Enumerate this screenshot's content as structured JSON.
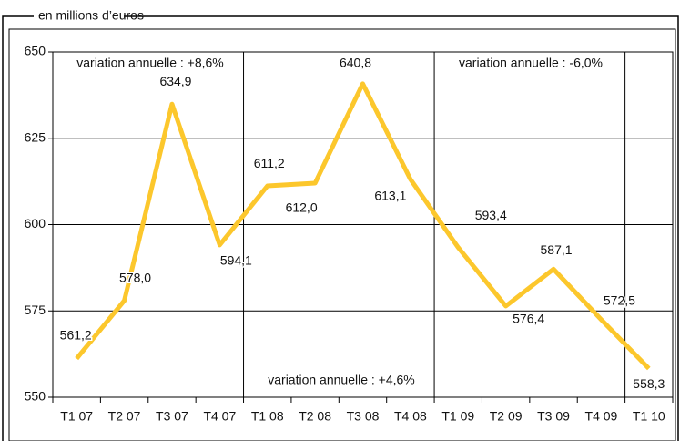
{
  "chart_data": {
    "type": "line",
    "subtitle": "en millions d’euros",
    "categories": [
      "T1 07",
      "T2 07",
      "T3 07",
      "T4 07",
      "T1 08",
      "T2 08",
      "T3 08",
      "T4 08",
      "T1 09",
      "T2 09",
      "T3 09",
      "T4 09",
      "T1 10"
    ],
    "values": [
      561.2,
      578.0,
      634.9,
      594.1,
      611.2,
      612.0,
      640.8,
      613.1,
      593.4,
      576.4,
      587.1,
      572.5,
      558.3
    ],
    "value_labels": [
      "561,2",
      "578,0",
      "634,9",
      "594,1",
      "611,2",
      "612,0",
      "640,8",
      "613,1",
      "593,4",
      "576,4",
      "587,1",
      "572,5",
      "558,3"
    ],
    "color": "#fcc72c",
    "ylim": [
      550,
      650
    ],
    "yticks": [
      550,
      575,
      600,
      625,
      650
    ],
    "grid": true,
    "annotations": [
      "variation annuelle : +8,6%",
      "variation annuelle : +4,6%",
      "variation annuelle : -6,0%"
    ]
  }
}
